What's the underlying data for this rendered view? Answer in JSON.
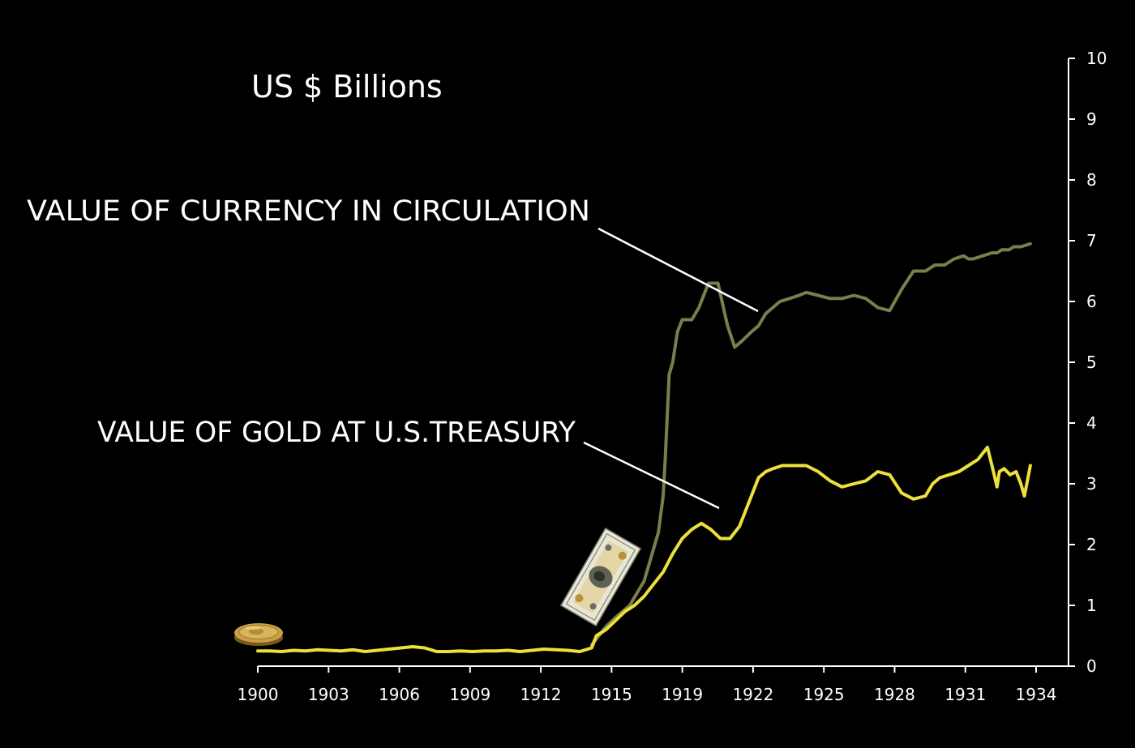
{
  "chart_data": {
    "type": "line",
    "title": "US $ Billions",
    "xlabel": "",
    "ylabel": "",
    "x_ticks": [
      "1900",
      "1903",
      "1906",
      "1909",
      "1912",
      "1915",
      "1919",
      "1922",
      "1925",
      "1928",
      "1931",
      "1934"
    ],
    "y_ticks": [
      "0",
      "1",
      "2",
      "3",
      "4",
      "5",
      "6",
      "7",
      "8",
      "9",
      "10"
    ],
    "xlim": [
      1900,
      1934
    ],
    "ylim": [
      0,
      10
    ],
    "y_axis_side": "right",
    "grid": false,
    "series": [
      {
        "name": "VALUE OF CURRENCY IN CIRCULATION",
        "color": "#7c7d4a",
        "x": [
          1914.0,
          1914.3,
          1914.6,
          1915.0,
          1915.3,
          1915.6,
          1915.9,
          1916.2,
          1916.5,
          1916.8,
          1917.0,
          1917.1,
          1917.25,
          1917.4,
          1917.6,
          1917.8,
          1918.2,
          1918.5,
          1918.9,
          1919.3,
          1919.7,
          1920.0,
          1920.3,
          1920.7,
          1921.0,
          1921.3,
          1921.6,
          1921.9,
          1922.3,
          1922.7,
          1923.0,
          1923.5,
          1924.0,
          1924.5,
          1925.0,
          1925.5,
          1926.0,
          1926.5,
          1927.0,
          1927.5,
          1928.0,
          1928.4,
          1928.8,
          1929.2,
          1929.6,
          1929.8,
          1930.0,
          1930.4,
          1930.8,
          1931.0,
          1931.2,
          1931.5,
          1931.7,
          1932.0,
          1932.4
        ],
        "values": [
          0.35,
          0.5,
          0.65,
          0.8,
          0.9,
          1.0,
          1.2,
          1.4,
          1.8,
          2.2,
          2.8,
          3.5,
          4.8,
          5.0,
          5.5,
          5.7,
          5.7,
          5.9,
          6.3,
          6.3,
          5.6,
          5.25,
          5.35,
          5.5,
          5.6,
          5.8,
          5.9,
          6.0,
          6.05,
          6.1,
          6.15,
          6.1,
          6.05,
          6.05,
          6.1,
          6.05,
          5.9,
          5.85,
          6.2,
          6.5,
          6.5,
          6.6,
          6.6,
          6.7,
          6.75,
          6.7,
          6.7,
          6.75,
          6.8,
          6.8,
          6.85,
          6.85,
          6.9,
          6.9,
          6.95
        ]
      },
      {
        "name": "VALUE OF GOLD AT U.S.TREASURY",
        "color": "#ece13a",
        "x": [
          1900.0,
          1900.5,
          1901.0,
          1901.5,
          1902.0,
          1902.5,
          1903.0,
          1903.5,
          1904.0,
          1904.5,
          1905.0,
          1905.5,
          1906.0,
          1906.5,
          1907.0,
          1907.5,
          1908.0,
          1908.5,
          1909.0,
          1909.5,
          1910.0,
          1910.5,
          1911.0,
          1911.5,
          1912.0,
          1912.5,
          1913.0,
          1913.5,
          1914.0,
          1914.2,
          1914.6,
          1915.0,
          1915.4,
          1915.8,
          1916.2,
          1916.6,
          1917.0,
          1917.4,
          1917.8,
          1918.2,
          1918.6,
          1919.0,
          1919.4,
          1919.8,
          1920.2,
          1920.6,
          1921.0,
          1921.3,
          1921.6,
          1922.0,
          1922.4,
          1923.0,
          1923.5,
          1924.0,
          1924.5,
          1925.0,
          1925.5,
          1926.0,
          1926.5,
          1927.0,
          1927.5,
          1928.0,
          1928.3,
          1928.6,
          1929.0,
          1929.4,
          1929.8,
          1930.2,
          1930.6,
          1930.85,
          1931.0,
          1931.1,
          1931.3,
          1931.55,
          1931.8,
          1932.0,
          1932.15,
          1932.4
        ],
        "values": [
          0.25,
          0.25,
          0.24,
          0.26,
          0.25,
          0.27,
          0.26,
          0.25,
          0.27,
          0.24,
          0.26,
          0.28,
          0.3,
          0.32,
          0.3,
          0.24,
          0.24,
          0.25,
          0.24,
          0.25,
          0.25,
          0.26,
          0.24,
          0.26,
          0.28,
          0.27,
          0.26,
          0.24,
          0.3,
          0.5,
          0.6,
          0.75,
          0.9,
          1.0,
          1.15,
          1.35,
          1.55,
          1.85,
          2.1,
          2.25,
          2.35,
          2.25,
          2.1,
          2.1,
          2.3,
          2.7,
          3.1,
          3.2,
          3.25,
          3.3,
          3.3,
          3.3,
          3.2,
          3.05,
          2.95,
          3.0,
          3.05,
          3.2,
          3.15,
          2.85,
          2.75,
          2.8,
          3.0,
          3.1,
          3.15,
          3.2,
          3.3,
          3.4,
          3.6,
          3.2,
          2.95,
          3.2,
          3.25,
          3.15,
          3.2,
          3.0,
          2.8,
          3.3
        ]
      }
    ],
    "annotations": [
      {
        "text": "VALUE OF CURRENCY IN CIRCULATION",
        "series": 0,
        "arrow_to": [
          1922.0,
          5.9
        ]
      },
      {
        "text": "VALUE OF GOLD AT U.S.TREASURY",
        "series": 1,
        "arrow_to": [
          1918.0,
          2.6
        ]
      }
    ],
    "icons": [
      "gold-coin-icon",
      "gold-certificate-banknote-icon"
    ]
  }
}
